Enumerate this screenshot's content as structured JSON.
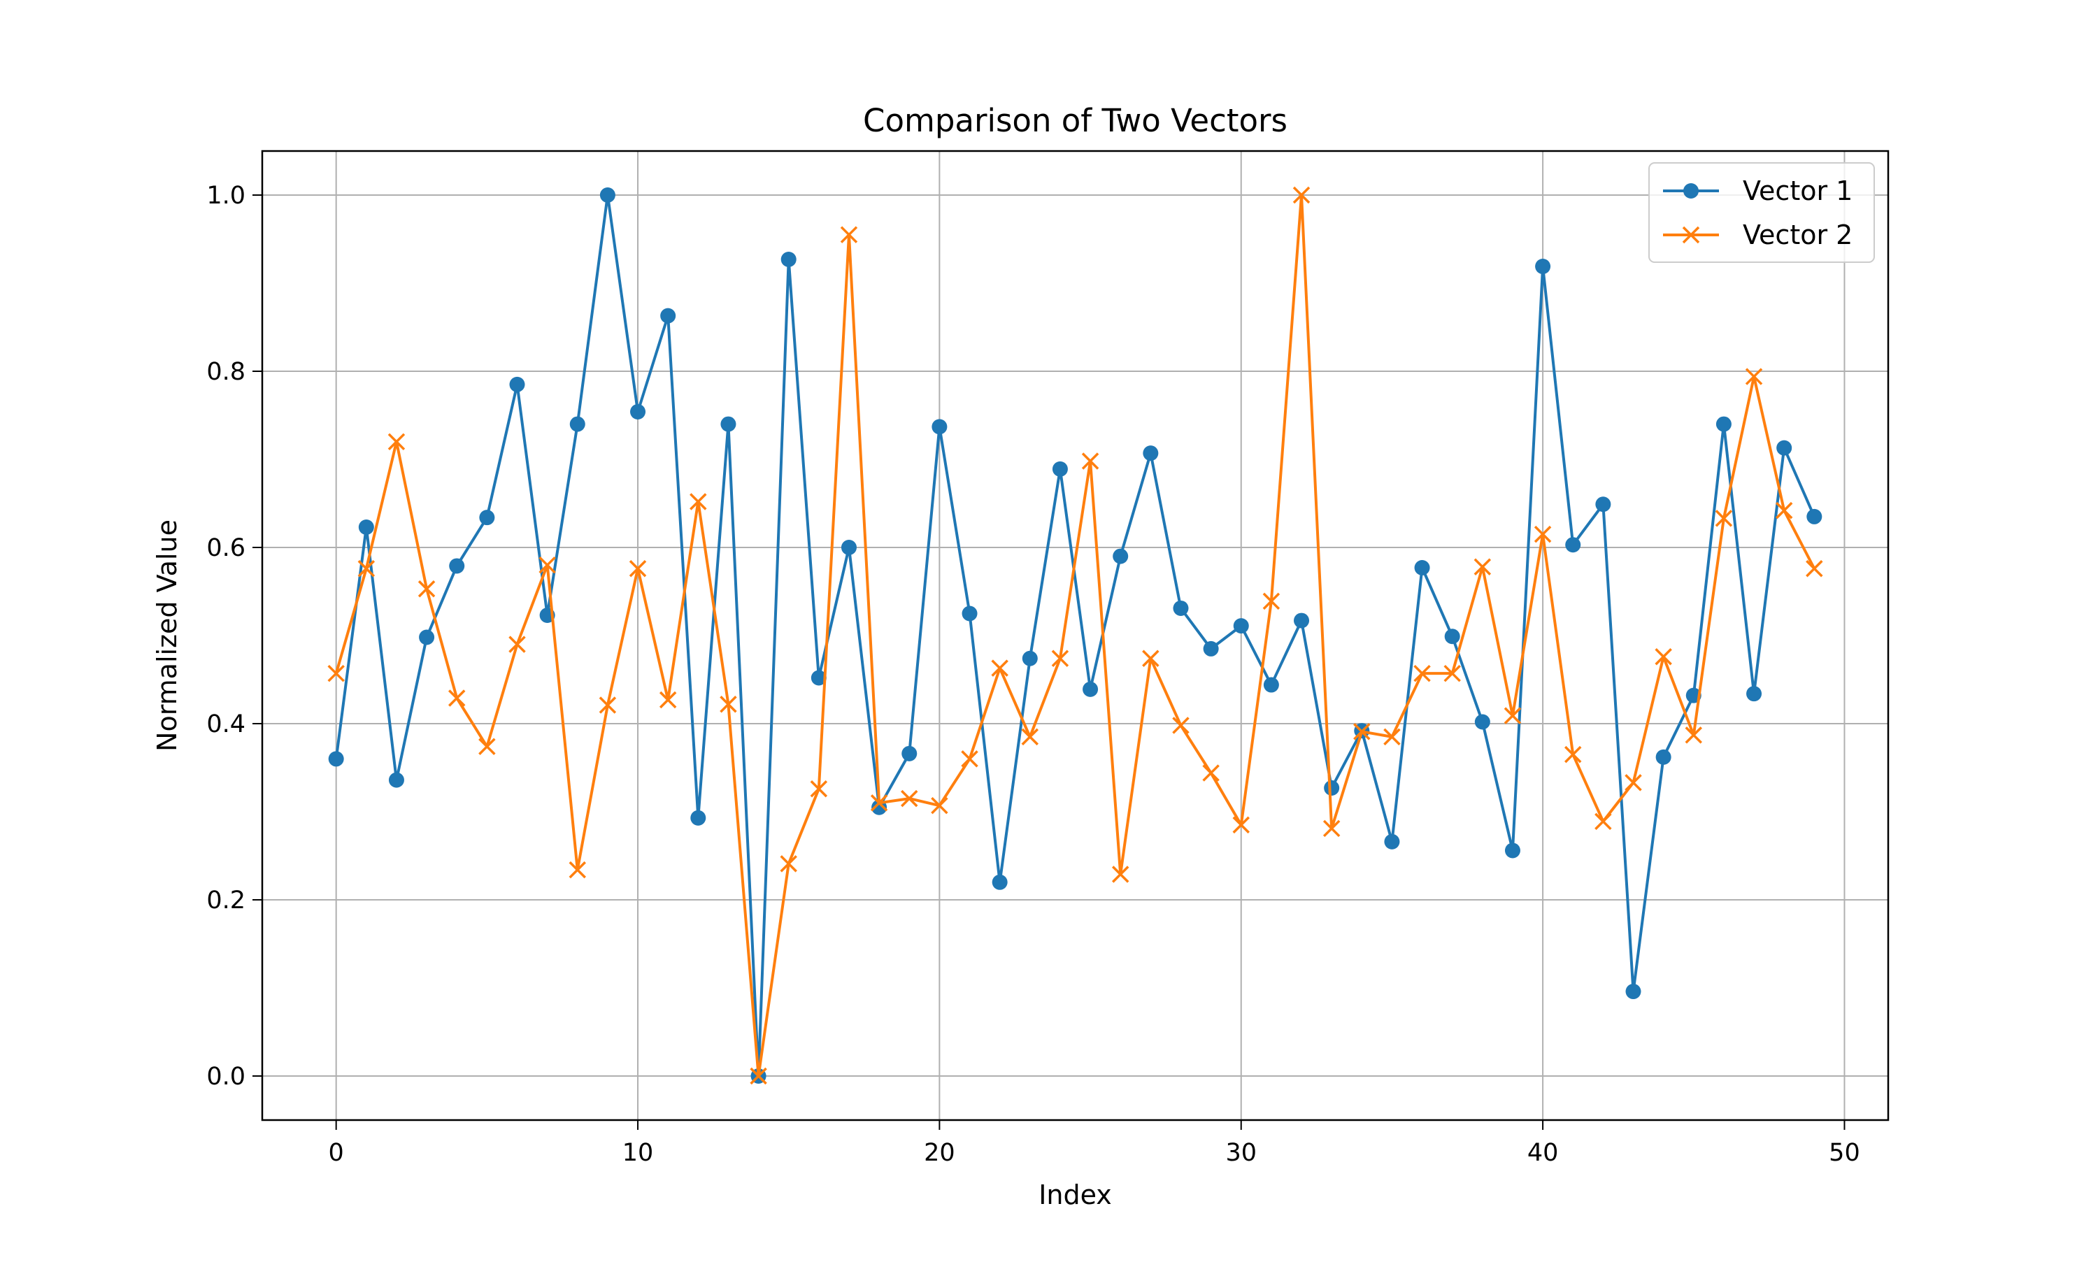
{
  "chart_data": {
    "type": "line",
    "title": "Comparison of Two Vectors",
    "xlabel": "Index",
    "ylabel": "Normalized Value",
    "xlim": [
      -2.45,
      51.45
    ],
    "ylim": [
      -0.05,
      1.05
    ],
    "xticks": [
      0,
      10,
      20,
      30,
      40,
      50
    ],
    "yticks": [
      0.0,
      0.2,
      0.4,
      0.6,
      0.8,
      1.0
    ],
    "xtick_labels": [
      "0",
      "10",
      "20",
      "30",
      "40",
      "50"
    ],
    "ytick_labels": [
      "0.0",
      "0.2",
      "0.4",
      "0.6",
      "0.8",
      "1.0"
    ],
    "grid": true,
    "legend_position": "top-right",
    "x": [
      0,
      1,
      2,
      3,
      4,
      5,
      6,
      7,
      8,
      9,
      10,
      11,
      12,
      13,
      14,
      15,
      16,
      17,
      18,
      19,
      20,
      21,
      22,
      23,
      24,
      25,
      26,
      27,
      28,
      29,
      30,
      31,
      32,
      33,
      34,
      35,
      36,
      37,
      38,
      39,
      40,
      41,
      42,
      43,
      44,
      45,
      46,
      47,
      48,
      49
    ],
    "series": [
      {
        "name": "Vector 1",
        "color": "#1f77b4",
        "marker": "circle",
        "values": [
          0.36,
          0.623,
          0.336,
          0.498,
          0.579,
          0.634,
          0.785,
          0.523,
          0.74,
          1.0,
          0.754,
          0.863,
          0.293,
          0.74,
          0.0,
          0.927,
          0.452,
          0.6,
          0.305,
          0.366,
          0.737,
          0.525,
          0.22,
          0.474,
          0.689,
          0.439,
          0.59,
          0.707,
          0.531,
          0.485,
          0.511,
          0.444,
          0.517,
          0.327,
          0.392,
          0.266,
          0.577,
          0.499,
          0.402,
          0.256,
          0.919,
          0.603,
          0.649,
          0.096,
          0.362,
          0.432,
          0.74,
          0.434,
          0.713,
          0.635
        ]
      },
      {
        "name": "Vector 2",
        "color": "#ff7f0e",
        "marker": "x",
        "values": [
          0.457,
          0.576,
          0.72,
          0.553,
          0.429,
          0.374,
          0.49,
          0.58,
          0.234,
          0.421,
          0.576,
          0.427,
          0.652,
          0.422,
          0.0,
          0.241,
          0.326,
          0.955,
          0.31,
          0.315,
          0.307,
          0.36,
          0.463,
          0.385,
          0.474,
          0.698,
          0.229,
          0.474,
          0.398,
          0.344,
          0.285,
          0.539,
          1.0,
          0.281,
          0.391,
          0.385,
          0.457,
          0.457,
          0.578,
          0.409,
          0.615,
          0.365,
          0.289,
          0.333,
          0.476,
          0.387,
          0.633,
          0.794,
          0.642,
          0.576
        ]
      }
    ]
  }
}
